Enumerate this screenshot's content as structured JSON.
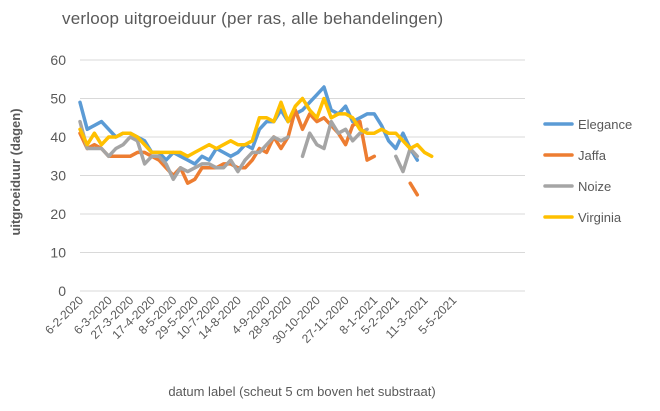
{
  "chart_data": {
    "type": "line",
    "title": "verloop uitgroeiduur (per ras, alle behandelingen)",
    "xlabel": "datum label (scheut 5 cm boven het substraat)",
    "ylabel": "uitgroeiduur (dagen)",
    "ylim": [
      0,
      60
    ],
    "yticks": [
      "0",
      "10",
      "20",
      "30",
      "40",
      "50",
      "60"
    ],
    "grid": "horizontal",
    "legend_position": "right",
    "x": [
      1,
      2,
      3,
      4,
      5,
      6,
      7,
      8,
      9,
      10,
      11,
      12,
      13,
      14,
      15,
      16,
      17,
      18,
      19,
      20,
      21,
      22,
      23,
      24,
      25,
      26,
      27,
      28,
      29,
      30,
      31,
      32,
      33,
      34,
      35,
      36,
      37,
      38,
      39,
      40,
      41,
      42,
      43,
      44,
      45,
      46,
      47,
      48,
      49,
      50,
      51,
      52,
      53,
      54,
      55,
      56,
      57,
      58,
      59,
      60,
      61,
      62,
      63
    ],
    "tick_labels": [
      {
        "x": 1,
        "label": "6-2-2020"
      },
      {
        "x": 5,
        "label": "6-3-2020"
      },
      {
        "x": 8,
        "label": "27-3-2020"
      },
      {
        "x": 11,
        "label": "17-4-2020"
      },
      {
        "x": 14,
        "label": "8-5-2020"
      },
      {
        "x": 17,
        "label": "29-5-2020"
      },
      {
        "x": 20,
        "label": "10-7-2020"
      },
      {
        "x": 23,
        "label": "14-8-2020"
      },
      {
        "x": 27,
        "label": "4-9-2020"
      },
      {
        "x": 30,
        "label": "28-9-2020"
      },
      {
        "x": 34,
        "label": "30-10-2020"
      },
      {
        "x": 38,
        "label": "27-11-2020"
      },
      {
        "x": 42,
        "label": "8-1-2021"
      },
      {
        "x": 45,
        "label": "5-2-2021"
      },
      {
        "x": 49,
        "label": "11-3-2021"
      },
      {
        "x": 53,
        "label": "5-5-2021"
      }
    ],
    "series": [
      {
        "name": "Elegance",
        "color": "#5b9bd5",
        "values": [
          49,
          42,
          43,
          44,
          42,
          40,
          41,
          41,
          40,
          39,
          36,
          36,
          34,
          36,
          35,
          34,
          33,
          35,
          34,
          37,
          36,
          35,
          36,
          38,
          37,
          42,
          44,
          44,
          47,
          44,
          46,
          47,
          49,
          51,
          53,
          47,
          46,
          48,
          44,
          45,
          46,
          46,
          43,
          39,
          37,
          41,
          37,
          34,
          null,
          null,
          null,
          null,
          null,
          null,
          null,
          null,
          null,
          null,
          null,
          null,
          null,
          null,
          null
        ]
      },
      {
        "name": "Jaffa",
        "color": "#ed7d31",
        "values": [
          41,
          37,
          38,
          37,
          35,
          35,
          35,
          35,
          36,
          36,
          35,
          34,
          32,
          30,
          32,
          28,
          29,
          32,
          32,
          32,
          33,
          33,
          32,
          32,
          34,
          37,
          36,
          40,
          37,
          40,
          47,
          42,
          46,
          44,
          45,
          43,
          41,
          38,
          43,
          44,
          34,
          35,
          null,
          null,
          null,
          null,
          28,
          25,
          null,
          null,
          null,
          null,
          null,
          null,
          null,
          null,
          null,
          null,
          null,
          null,
          null,
          null,
          null
        ]
      },
      {
        "name": "Noize",
        "color": "#a5a5a5",
        "values": [
          44,
          37,
          37,
          37,
          35,
          37,
          38,
          40,
          39,
          33,
          35,
          35,
          33,
          29,
          32,
          31,
          32,
          33,
          33,
          32,
          32,
          34,
          31,
          34,
          36,
          36,
          38,
          40,
          39,
          40,
          null,
          35,
          41,
          38,
          37,
          44,
          41,
          42,
          39,
          41,
          42,
          null,
          null,
          null,
          35,
          31,
          37,
          35,
          null,
          null,
          null,
          null,
          null,
          null,
          null,
          null,
          null,
          null,
          null,
          null,
          null,
          null,
          null
        ]
      },
      {
        "name": "Virginia",
        "color": "#ffc000",
        "values": [
          42,
          38,
          41,
          38,
          40,
          40,
          41,
          41,
          40,
          38,
          36,
          36,
          36,
          36,
          36,
          35,
          36,
          37,
          38,
          37,
          38,
          39,
          38,
          38,
          39,
          45,
          45,
          44,
          49,
          44,
          48,
          50,
          47,
          45,
          50,
          45,
          46,
          46,
          45,
          42,
          41,
          41,
          42,
          41,
          41,
          39,
          37,
          38,
          36,
          35,
          null,
          null,
          null,
          null,
          null,
          null,
          null,
          null,
          null,
          null,
          null,
          null,
          null
        ]
      }
    ]
  }
}
